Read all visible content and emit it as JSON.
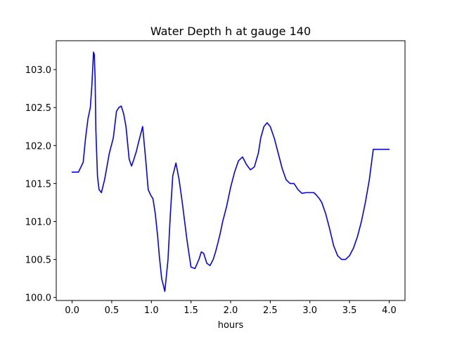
{
  "chart_data": {
    "type": "line",
    "title": "Water Depth h at gauge 140",
    "xlabel": "hours",
    "ylabel": "",
    "xlim": [
      -0.2,
      4.2
    ],
    "ylim": [
      99.96,
      103.38
    ],
    "xticks": [
      "0.0",
      "0.5",
      "1.0",
      "1.5",
      "2.0",
      "2.5",
      "3.0",
      "3.5",
      "4.0"
    ],
    "yticks": [
      "100.0",
      "100.5",
      "101.0",
      "101.5",
      "102.0",
      "102.5",
      "103.0"
    ],
    "grid": false,
    "series": [
      {
        "color": "#0000ff",
        "x": [
          0.0,
          0.08,
          0.14,
          0.17,
          0.2,
          0.23,
          0.25,
          0.27,
          0.28,
          0.29,
          0.3,
          0.32,
          0.34,
          0.37,
          0.41,
          0.47,
          0.52,
          0.56,
          0.59,
          0.62,
          0.65,
          0.68,
          0.72,
          0.75,
          0.78,
          0.81,
          0.84,
          0.89,
          0.93,
          0.96,
          0.99,
          1.02,
          1.05,
          1.08,
          1.1,
          1.13,
          1.17,
          1.21,
          1.24,
          1.27,
          1.31,
          1.35,
          1.39,
          1.42,
          1.45,
          1.5,
          1.55,
          1.6,
          1.63,
          1.66,
          1.7,
          1.74,
          1.78,
          1.81,
          1.84,
          1.87,
          1.9,
          1.95,
          2.0,
          2.05,
          2.1,
          2.15,
          2.2,
          2.25,
          2.3,
          2.35,
          2.38,
          2.42,
          2.46,
          2.5,
          2.55,
          2.6,
          2.65,
          2.7,
          2.75,
          2.8,
          2.85,
          2.9,
          2.95,
          3.0,
          3.05,
          3.08,
          3.12,
          3.15,
          3.2,
          3.25,
          3.3,
          3.35,
          3.4,
          3.45,
          3.5,
          3.55,
          3.6,
          3.65,
          3.7,
          3.75,
          3.8,
          3.85,
          3.9,
          3.95,
          4.0
        ],
        "y": [
          101.65,
          101.65,
          101.78,
          102.1,
          102.35,
          102.5,
          102.8,
          103.23,
          103.2,
          102.9,
          102.2,
          101.6,
          101.42,
          101.38,
          101.55,
          101.9,
          102.1,
          102.45,
          102.5,
          102.52,
          102.42,
          102.25,
          101.82,
          101.73,
          101.82,
          101.92,
          102.05,
          102.25,
          101.8,
          101.42,
          101.35,
          101.3,
          101.1,
          100.8,
          100.55,
          100.25,
          100.08,
          100.5,
          101.1,
          101.6,
          101.77,
          101.55,
          101.25,
          101.0,
          100.75,
          100.4,
          100.38,
          100.5,
          100.6,
          100.58,
          100.45,
          100.42,
          100.5,
          100.6,
          100.72,
          100.85,
          101.0,
          101.2,
          101.45,
          101.65,
          101.8,
          101.85,
          101.75,
          101.68,
          101.72,
          101.9,
          102.1,
          102.25,
          102.3,
          102.25,
          102.1,
          101.9,
          101.7,
          101.55,
          101.5,
          101.5,
          101.42,
          101.37,
          101.38,
          101.38,
          101.38,
          101.35,
          101.3,
          101.25,
          101.1,
          100.9,
          100.68,
          100.55,
          100.5,
          100.5,
          100.55,
          100.65,
          100.8,
          101.0,
          101.25,
          101.55,
          101.95,
          101.95,
          101.95,
          101.95,
          101.95
        ]
      }
    ]
  }
}
